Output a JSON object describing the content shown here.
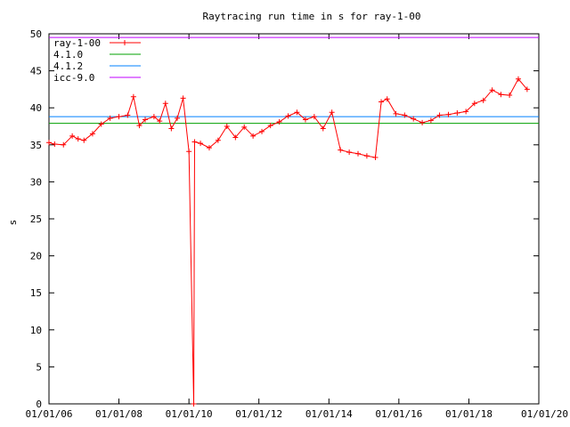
{
  "chart_data": {
    "type": "line",
    "title": "Raytracing run time in s for ray-1-00",
    "xlabel": "",
    "ylabel": "s",
    "ylim": [
      0,
      50
    ],
    "xlim": [
      "2006-01-01",
      "2020-01-01"
    ],
    "yticks": [
      "0",
      "5",
      "10",
      "15",
      "20",
      "25",
      "30",
      "35",
      "40",
      "45",
      "50"
    ],
    "xticks": [
      "01/01/06",
      "01/01/08",
      "01/01/10",
      "01/01/12",
      "01/01/14",
      "01/01/16",
      "01/01/18",
      "01/01/20"
    ],
    "legend_position": "top-left",
    "grid": false,
    "series": [
      {
        "name": "ray-1-00",
        "color": "#ff0000",
        "marker": "plus",
        "x": [
          "2006-01-01",
          "2006-03-01",
          "2006-06-01",
          "2006-09-01",
          "2006-11-01",
          "2007-01-01",
          "2007-04-01",
          "2007-07-01",
          "2007-10-01",
          "2008-01-01",
          "2008-04-01",
          "2008-06-01",
          "2008-08-01",
          "2008-10-01",
          "2009-01-01",
          "2009-03-01",
          "2009-05-01",
          "2009-07-01",
          "2009-09-01",
          "2009-11-01",
          "2010-01-01",
          "2010-02-20",
          "2010-03-01",
          "2010-05-01",
          "2010-08-01",
          "2010-11-01",
          "2011-02-01",
          "2011-05-01",
          "2011-08-01",
          "2011-11-01",
          "2012-02-01",
          "2012-05-01",
          "2012-08-01",
          "2012-11-01",
          "2013-02-01",
          "2013-05-01",
          "2013-08-01",
          "2013-11-01",
          "2014-02-01",
          "2014-05-01",
          "2014-08-01",
          "2014-11-01",
          "2015-02-01",
          "2015-05-01",
          "2015-07-01",
          "2015-09-01",
          "2015-12-01",
          "2016-03-01",
          "2016-06-01",
          "2016-09-01",
          "2016-12-01",
          "2017-03-01",
          "2017-06-01",
          "2017-09-01",
          "2017-12-01",
          "2018-03-01",
          "2018-06-01",
          "2018-09-01",
          "2018-12-01",
          "2019-03-01",
          "2019-06-01",
          "2019-09-01"
        ],
        "y": [
          35.3,
          35.1,
          35.0,
          36.2,
          35.8,
          35.6,
          36.5,
          37.8,
          38.6,
          38.8,
          39.0,
          41.5,
          37.6,
          38.4,
          38.8,
          38.2,
          40.6,
          37.2,
          38.6,
          41.3,
          34.1,
          0,
          35.4,
          35.2,
          34.6,
          35.6,
          37.5,
          36.0,
          37.4,
          36.2,
          36.8,
          37.6,
          38.1,
          38.9,
          39.4,
          38.4,
          38.8,
          37.2,
          39.4,
          34.3,
          34.0,
          33.8,
          33.5,
          33.3,
          40.8,
          41.2,
          39.2,
          39.0,
          38.5,
          38.0,
          38.3,
          39.0,
          39.1,
          39.3,
          39.5,
          40.6,
          41.0,
          42.4,
          41.8,
          41.7,
          43.9,
          42.5
        ]
      },
      {
        "name": "4.1.0",
        "color": "#00a000",
        "constant": 37.9
      },
      {
        "name": "4.1.2",
        "color": "#0080ff",
        "constant": 38.8
      },
      {
        "name": "icc-9.0",
        "color": "#c000ff",
        "constant": 49.5
      }
    ]
  }
}
